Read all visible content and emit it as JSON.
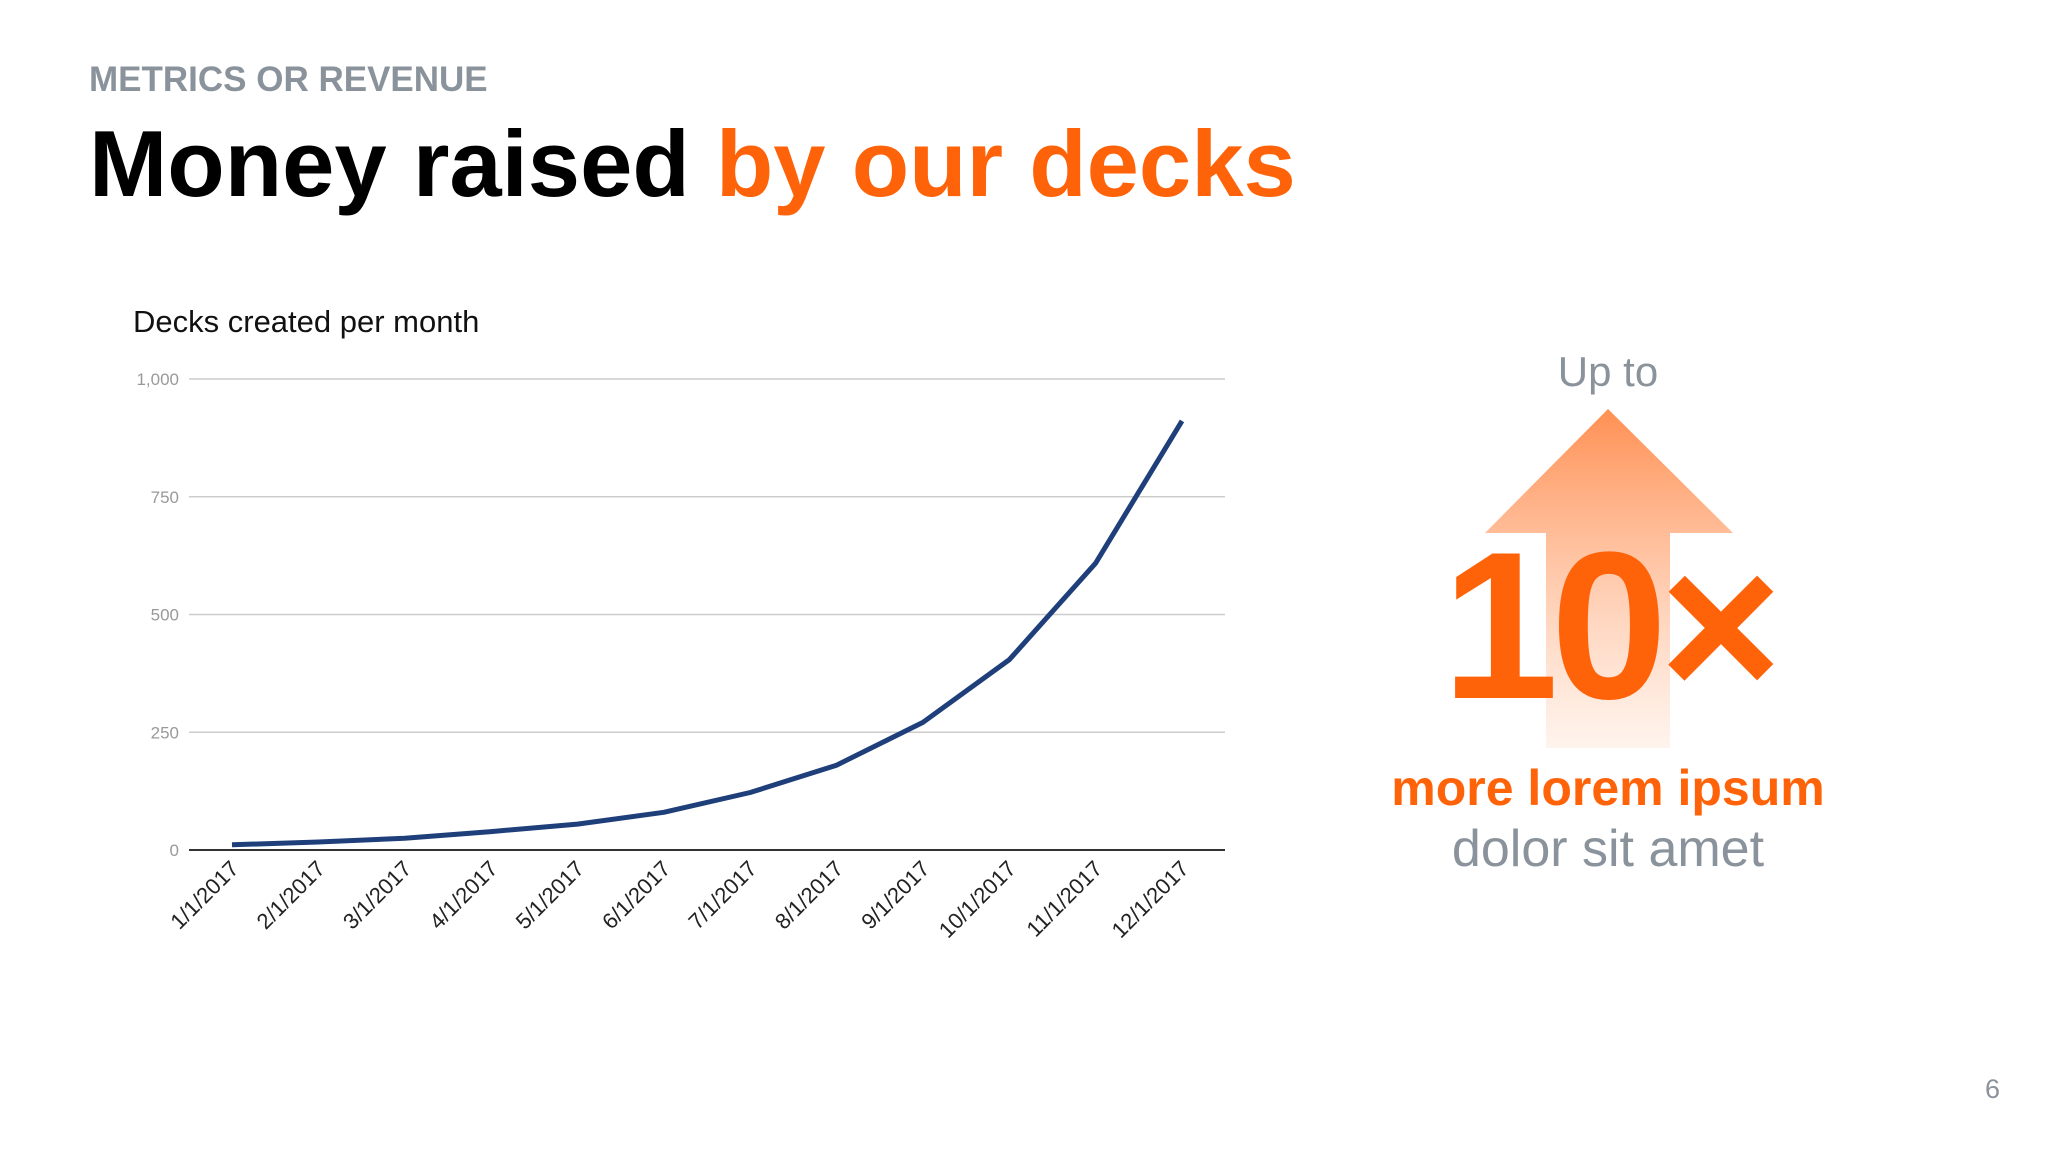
{
  "header": {
    "kicker": "METRICS OR REVENUE",
    "title_black": "Money raised",
    "title_orange": "by our decks"
  },
  "chart_data": {
    "type": "line",
    "title": "Decks created per month",
    "x": [
      "1/1/2017",
      "2/1/2017",
      "3/1/2017",
      "4/1/2017",
      "5/1/2017",
      "6/1/2017",
      "7/1/2017",
      "8/1/2017",
      "9/1/2017",
      "10/1/2017",
      "11/1/2017",
      "12/1/2017"
    ],
    "values": [
      11,
      17,
      25,
      39,
      55,
      80,
      122,
      180,
      271,
      404,
      609,
      911
    ],
    "color": "#1f3f7a",
    "ylim": [
      0,
      1000
    ],
    "yticks": [
      0,
      250,
      500,
      750,
      {
        "value": 1000,
        "label": "1,000"
      }
    ],
    "grid": true
  },
  "callout": {
    "up_to": "Up to",
    "multiplier": "10×",
    "line1": "more lorem ipsum",
    "line2": "dolor sit amet"
  },
  "page_number": "6"
}
